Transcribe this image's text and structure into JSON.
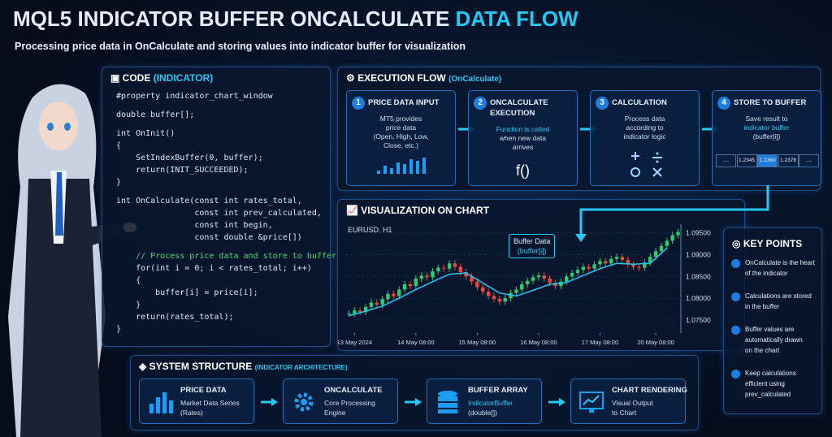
{
  "header": {
    "title_main": "MQL5 INDICATOR BUFFER ONCALCULATE",
    "title_accent": "DATA FLOW",
    "subtitle": "Processing price data in OnCalculate and storing values into indicator buffer for visualization"
  },
  "code": {
    "title": "CODE",
    "title_paren": "(INDICATOR)",
    "blocks": [
      [
        "#property indicator_chart_window"
      ],
      [
        "double buffer[];"
      ],
      [
        "int OnInit()",
        "{",
        "    SetIndexBuffer(0, buffer);",
        "    return(INIT_SUCCEEDED);",
        "}"
      ],
      [
        "int OnCalculate(const int rates_total,",
        "                const int prev_calculated,",
        "                const int begin,",
        "                const double &price[])"
      ],
      [
        "    // Process price data and store to buffer",
        "    for(int i = 0; i < rates_total; i++)",
        "    {",
        "        buffer[i] = price[i];",
        "    }",
        "    return(rates_total);",
        "}"
      ]
    ]
  },
  "execution": {
    "title": "EXECUTION FLOW",
    "title_paren": "(OnCalculate)",
    "steps": [
      {
        "num": 1,
        "title": [
          "PRICE DATA INPUT"
        ],
        "text": [
          "MT5 provides",
          "price data",
          "(Open, High, Low,",
          "Close, etc.)"
        ]
      },
      {
        "num": 2,
        "title": [
          "ONCALCULATE",
          "EXECUTION"
        ],
        "text": [
          "Function is called",
          "when new data",
          "arrives"
        ],
        "symbol": "f()"
      },
      {
        "num": 3,
        "title": [
          "CALCULATION"
        ],
        "text": [
          "Process data",
          "according to",
          "indicator logic"
        ]
      },
      {
        "num": 4,
        "title": [
          "STORE TO BUFFER"
        ],
        "text": [
          "Save result to",
          "indicator buffer",
          "(buffer[i])"
        ],
        "cells": [
          "....",
          "1.2345",
          "1.2360",
          "1.2378",
          "...."
        ]
      }
    ]
  },
  "visualization": {
    "title": "VISUALIZATION ON CHART"
  },
  "chart_data": {
    "type": "candlestick",
    "symbol": "EURUSD, H1",
    "annotation": [
      "Buffer Data",
      "(buffer[i])"
    ],
    "values": [
      1.0765,
      1.0772,
      1.0768,
      1.078,
      1.079,
      1.0785,
      1.0798,
      1.081,
      1.0805,
      1.082,
      1.0832,
      1.0828,
      1.0845,
      1.0852,
      1.0848,
      1.0862,
      1.087,
      1.0868,
      1.088,
      1.0872,
      1.086,
      1.085,
      1.0838,
      1.0825,
      1.0815,
      1.0805,
      1.0798,
      1.0792,
      1.08,
      1.0812,
      1.082,
      1.0832,
      1.084,
      1.0848,
      1.0852,
      1.0845,
      1.0835,
      1.0828,
      1.0838,
      1.085,
      1.0858,
      1.0865,
      1.0872,
      1.0868,
      1.0878,
      1.0885,
      1.088,
      1.089,
      1.0895,
      1.0888,
      1.0878,
      1.0872,
      1.087,
      1.0882,
      1.0895,
      1.0908,
      1.092,
      1.0932,
      1.0945,
      1.0952
    ],
    "buffer": {
      "x": [
        0,
        3,
        6,
        9,
        12,
        15,
        18,
        21,
        24,
        27,
        30,
        33,
        36,
        39,
        42,
        45,
        48,
        51,
        54,
        57
      ],
      "values": [
        1.076,
        1.077,
        1.0782,
        1.08,
        1.082,
        1.0838,
        1.0855,
        1.0858,
        1.0835,
        1.0812,
        1.0805,
        1.0818,
        1.0832,
        1.0836,
        1.0852,
        1.0868,
        1.088,
        1.0878,
        1.088,
        1.0915
      ],
      "color": "#27c8f5"
    },
    "up_color": "#2ecc71",
    "down_color": "#e74c3c",
    "ylim": [
      1.072,
      1.097
    ],
    "yticks": [
      {
        "value": 1.075,
        "label": "1.07500"
      },
      {
        "value": 1.08,
        "label": "1.08000"
      },
      {
        "value": 1.085,
        "label": "1.08500"
      },
      {
        "value": 1.09,
        "label": "1.09000"
      },
      {
        "value": 1.095,
        "label": "1.09500"
      }
    ],
    "xticks": [
      {
        "value": 1,
        "label": "13 May 2024"
      },
      {
        "value": 12,
        "label": "14 May 08:00"
      },
      {
        "value": 23,
        "label": "15 May 08:00"
      },
      {
        "value": 34,
        "label": "16 May 08:00"
      },
      {
        "value": 45,
        "label": "17 May 08:00"
      },
      {
        "value": 55,
        "label": "20 May 08:00"
      }
    ],
    "grid": true
  },
  "key_points": {
    "title": "KEY POINTS",
    "items": [
      [
        "OnCalculate is the heart",
        "of the indicator"
      ],
      [
        "Calculations are stored",
        "in the buffer"
      ],
      [
        "Buffer values are",
        "automatically drawn",
        "on the chart"
      ],
      [
        "Keep calculations",
        "efficient using",
        "prev_calculated"
      ]
    ]
  },
  "system": {
    "title": "SYSTEM STRUCTURE",
    "title_paren": "(INDICATOR ARCHITECTURE)",
    "items": [
      {
        "title": "PRICE DATA",
        "lines": [
          "Market Data Series",
          "(Rates)"
        ]
      },
      {
        "title": "ONCALCULATE",
        "lines": [
          "Core Processing",
          "Engine"
        ]
      },
      {
        "title": "BUFFER ARRAY",
        "lines": [
          "IndicatorBuffer",
          "(double[])"
        ]
      },
      {
        "title": "CHART RENDERING",
        "lines": [
          "Visual Output",
          "to Chart"
        ]
      }
    ]
  }
}
